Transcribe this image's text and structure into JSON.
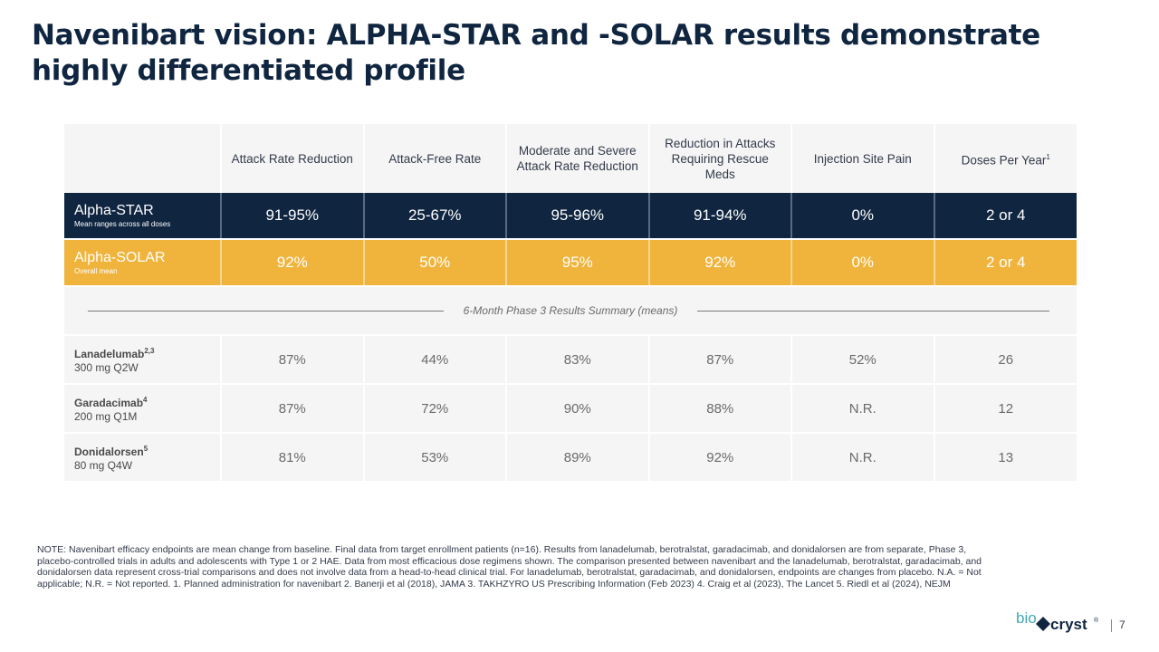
{
  "title": "Navenibart vision: ALPHA-STAR and -SOLAR results demonstrate highly differentiated profile",
  "table": {
    "headers": [
      {
        "label": "Attack Rate Reduction",
        "sup": ""
      },
      {
        "label": "Attack-Free Rate",
        "sup": ""
      },
      {
        "label": "Moderate and Severe Attack Rate Reduction",
        "sup": ""
      },
      {
        "label": "Reduction in Attacks Requiring Rescue Meds",
        "sup": ""
      },
      {
        "label": "Injection Site Pain",
        "sup": ""
      },
      {
        "label": "Doses Per Year",
        "sup": "1"
      }
    ],
    "star": {
      "name": "Alpha-STAR",
      "sub": "Mean ranges across all doses",
      "values": [
        "91-95%",
        "25-67%",
        "95-96%",
        "91-94%",
        "0%",
        "2 or 4"
      ]
    },
    "solar": {
      "name": "Alpha-SOLAR",
      "sub": "Overall mean",
      "values": [
        "92%",
        "50%",
        "95%",
        "92%",
        "0%",
        "2 or 4"
      ]
    },
    "summary_label": "6-Month Phase 3 Results Summary (means)",
    "comparators": [
      {
        "name": "Lanadelumab",
        "sup": "2,3",
        "dose": "300 mg Q2W",
        "values": [
          "87%",
          "44%",
          "83%",
          "87%",
          "52%",
          "26"
        ]
      },
      {
        "name": "Garadacimab",
        "sup": "4",
        "dose": "200 mg Q1M",
        "values": [
          "87%",
          "72%",
          "90%",
          "88%",
          "N.R.",
          "12"
        ]
      },
      {
        "name": "Donidalorsen",
        "sup": "5",
        "dose": "80 mg Q4W",
        "values": [
          "81%",
          "53%",
          "89%",
          "92%",
          "N.R.",
          "13"
        ]
      }
    ]
  },
  "note": "NOTE: Navenibart efficacy endpoints are mean change from baseline. Final data from target enrollment patients (n=16). Results from lanadelumab, berotralstat, garadacimab, and donidalorsen are from separate, Phase 3, placebo-controlled trials in adults and adolescents with Type 1 or 2 HAE. Data from most efficacious dose regimens shown. The comparison presented between navenibart and the lanadelumab, berotralstat, garadacimab, and donidalorsen data represent cross-trial comparisons and does not involve data from a head-to-head clinical trial. For lanadelumab, berotralstat, garadacimab, and donidalorsen, endpoints are changes from placebo. N.A. = Not applicable; N.R. = Not reported. 1. Planned administration for navenibart 2. Banerji et al (2018), JAMA 3. TAKHZYRO US Prescribing Information (Feb 2023) 4. Craig et al (2023), The Lancet 5. Riedl et al (2024), NEJM",
  "logo": {
    "part1": "bio",
    "part2": "cryst",
    "mark": "®"
  },
  "page_number": "7",
  "colors": {
    "navy": "#0f2540",
    "gold": "#f0b43c",
    "row_bg": "#f5f5f5",
    "logo_teal": "#3fa9b5"
  }
}
